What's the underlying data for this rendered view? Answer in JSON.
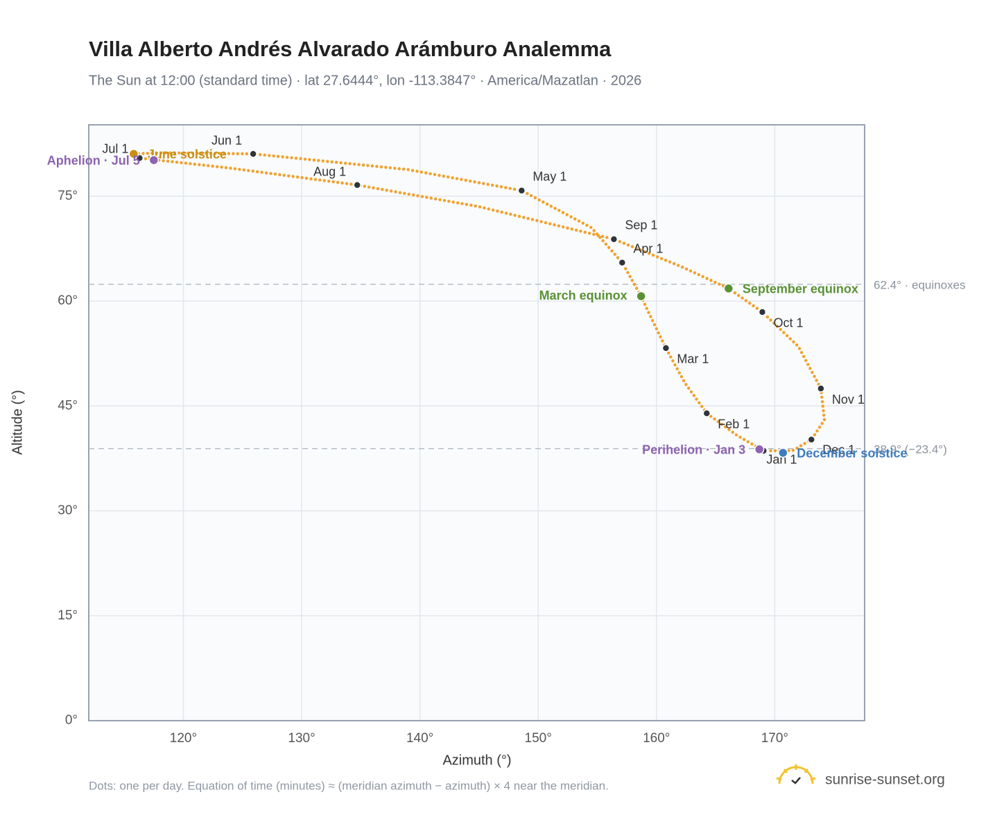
{
  "chart_data": {
    "type": "line",
    "title": "Villa Alberto Andrés Alvarado Arámburo Analemma",
    "subtitle": "The Sun at 12:00 (standard time) · lat 27.6444°, lon -113.3847° · America/Mazatlan · 2026",
    "x_label": "Azimuth (°)",
    "y_label": "Altitude (°)",
    "xlim": [
      112,
      177.6
    ],
    "ylim": [
      0,
      85.2
    ],
    "xticks": [
      {
        "value": 120,
        "label": "120°"
      },
      {
        "value": 130,
        "label": "130°"
      },
      {
        "value": 140,
        "label": "140°"
      },
      {
        "value": 150,
        "label": "150°"
      },
      {
        "value": 160,
        "label": "160°"
      },
      {
        "value": 170,
        "label": "170°"
      }
    ],
    "yticks": [
      {
        "value": 0,
        "label": "0°"
      },
      {
        "value": 15,
        "label": "15°"
      },
      {
        "value": 30,
        "label": "30°"
      },
      {
        "value": 45,
        "label": "45°"
      },
      {
        "value": 60,
        "label": "60°"
      },
      {
        "value": 75,
        "label": "75°"
      }
    ],
    "grid": true,
    "series": [
      {
        "color": "#f0a22e",
        "x": [
          169.06,
          166.8,
          164.25,
          162.4,
          160.8,
          159.3,
          158.7,
          157.1,
          154.5,
          148.6,
          139,
          125.9,
          118.5,
          115.8,
          116.3,
          124,
          134.7,
          145,
          156.4,
          162,
          166.1,
          168.95,
          172,
          173.9,
          174.2,
          173.1,
          171.5,
          169.2
        ],
        "values": [
          38.6,
          40.8,
          43.95,
          48.3,
          53.27,
          58.5,
          60.7,
          65.5,
          70.5,
          75.8,
          78.8,
          81.05,
          81.2,
          81.05,
          80.45,
          79,
          76.6,
          73.5,
          68.85,
          65,
          61.8,
          58.43,
          53.5,
          47.5,
          43,
          40.2,
          38.6,
          38.6
        ]
      }
    ],
    "months": [
      {
        "label": "Jan 1",
        "x": 169.06,
        "y": 38.6
      },
      {
        "label": "Feb 1",
        "x": 164.25,
        "y": 43.95
      },
      {
        "label": "Mar 1",
        "x": 160.8,
        "y": 53.27
      },
      {
        "label": "Apr 1",
        "x": 157.1,
        "y": 65.5
      },
      {
        "label": "May 1",
        "x": 148.6,
        "y": 75.8
      },
      {
        "label": "Jun 1",
        "x": 125.9,
        "y": 81.05
      },
      {
        "label": "Jul 1",
        "x": 116.3,
        "y": 80.45
      },
      {
        "label": "Aug 1",
        "x": 134.7,
        "y": 76.6
      },
      {
        "label": "Sep 1",
        "x": 156.4,
        "y": 68.85
      },
      {
        "label": "Oct 1",
        "x": 168.95,
        "y": 58.43
      },
      {
        "label": "Nov 1",
        "x": 173.9,
        "y": 47.5
      },
      {
        "label": "Dec 1",
        "x": 173.1,
        "y": 40.2
      }
    ],
    "events": [
      {
        "label": "March equinox",
        "x": 158.7,
        "y": 60.7,
        "color": "#5a9134"
      },
      {
        "label": "September equinox",
        "x": 166.1,
        "y": 61.8,
        "color": "#5a9134"
      },
      {
        "label": "June solstice",
        "x": 115.8,
        "y": 81.05,
        "color": "#c98f14"
      },
      {
        "label": "December solstice",
        "x": 170.7,
        "y": 38.3,
        "color": "#3d7cc0"
      },
      {
        "label": "Aphelion · Jul 5",
        "x": 117.5,
        "y": 80.16,
        "color": "#8d62b0"
      },
      {
        "label": "Perihelion · Jan 3",
        "x": 168.7,
        "y": 38.8,
        "color": "#8d62b0"
      }
    ],
    "reference_lines": [
      {
        "value": 62.4,
        "label": "62.4° · equinoxes"
      },
      {
        "value": 38.9,
        "label": "38.9° (−23.4°)"
      }
    ],
    "footnote": "Dots: one per day. Equation of time (minutes) ≈ (meridian azimuth − azimuth) × 4 near the meridian.",
    "brand": "sunrise-sunset.org"
  }
}
